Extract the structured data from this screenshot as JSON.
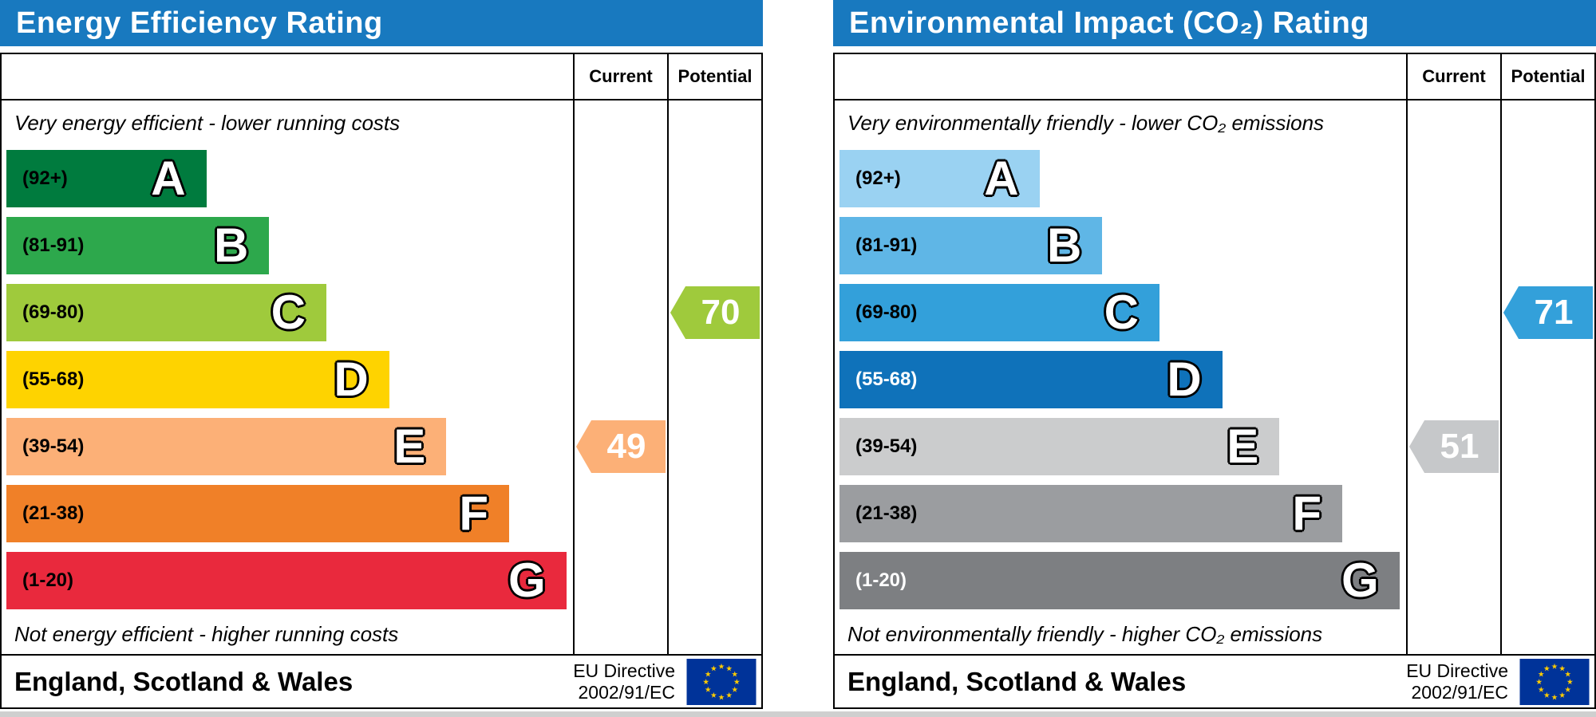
{
  "colors": {
    "header_bg": "#1879bf",
    "header_text": "#ffffff",
    "border": "#000000",
    "eu_flag_bg": "#003399",
    "eu_flag_star": "#ffcc00"
  },
  "panels": [
    {
      "title": "Energy Efficiency Rating",
      "columns": [
        "Current",
        "Potential"
      ],
      "top_note": "Very energy efficient - lower running costs",
      "bottom_note": "Not energy efficient - higher running costs",
      "bands": [
        {
          "letter": "A",
          "range": "(92+)",
          "color": "#007b3e",
          "width_pct": 35
        },
        {
          "letter": "B",
          "range": "(81-91)",
          "color": "#2da84c",
          "width_pct": 46
        },
        {
          "letter": "C",
          "range": "(69-80)",
          "color": "#9fca3c",
          "width_pct": 56
        },
        {
          "letter": "D",
          "range": "(55-68)",
          "color": "#fed300",
          "width_pct": 67
        },
        {
          "letter": "E",
          "range": "(39-54)",
          "color": "#fcb077",
          "width_pct": 77
        },
        {
          "letter": "F",
          "range": "(21-38)",
          "color": "#f08028",
          "width_pct": 88
        },
        {
          "letter": "G",
          "range": "(1-20)",
          "color": "#e9293d",
          "width_pct": 98
        }
      ],
      "current": {
        "value": "49",
        "band": "E",
        "row": 4,
        "color": "#fcb077"
      },
      "potential": {
        "value": "70",
        "band": "C",
        "row": 2,
        "color": "#9fca3c"
      },
      "footer_region": "England, Scotland & Wales",
      "directive": [
        "EU Directive",
        "2002/91/EC"
      ]
    },
    {
      "title": "Environmental Impact (CO₂) Rating",
      "columns": [
        "Current",
        "Potential"
      ],
      "top_note": "Very environmentally friendly - lower CO₂ emissions",
      "bottom_note": "Not environmentally friendly - higher CO₂ emissions",
      "bands": [
        {
          "letter": "A",
          "range": "(92+)",
          "color": "#9ad2f2",
          "width_pct": 35
        },
        {
          "letter": "B",
          "range": "(81-91)",
          "color": "#5fb6e6",
          "width_pct": 46
        },
        {
          "letter": "C",
          "range": "(69-80)",
          "color": "#33a0da",
          "width_pct": 56
        },
        {
          "letter": "D",
          "range": "(55-68)",
          "color": "#0f72ba",
          "width_pct": 67,
          "text": "#ffffff"
        },
        {
          "letter": "E",
          "range": "(39-54)",
          "color": "#cbcccd",
          "width_pct": 77
        },
        {
          "letter": "F",
          "range": "(21-38)",
          "color": "#9b9da0",
          "width_pct": 88
        },
        {
          "letter": "G",
          "range": "(1-20)",
          "color": "#7d7f82",
          "width_pct": 98,
          "text": "#ffffff"
        }
      ],
      "current": {
        "value": "51",
        "band": "E",
        "row": 4,
        "color": "#c6c8ca"
      },
      "potential": {
        "value": "71",
        "band": "C",
        "row": 2,
        "color": "#33a0da"
      },
      "footer_region": "England, Scotland & Wales",
      "directive": [
        "EU Directive",
        "2002/91/EC"
      ]
    }
  ],
  "chart_data": [
    {
      "type": "bar",
      "title": "Energy Efficiency Rating",
      "categories": [
        "A (92+)",
        "B (81-91)",
        "C (69-80)",
        "D (55-68)",
        "E (39-54)",
        "F (21-38)",
        "G (1-20)"
      ],
      "band_bar_widths_pct": [
        35,
        46,
        56,
        67,
        77,
        88,
        98
      ],
      "current": 49,
      "current_band": "E",
      "potential": 70,
      "potential_band": "C",
      "top_annotation": "Very energy efficient - lower running costs",
      "bottom_annotation": "Not energy efficient - higher running costs",
      "region": "England, Scotland & Wales",
      "directive": "EU Directive 2002/91/EC",
      "legend_position": "none",
      "grid": false
    },
    {
      "type": "bar",
      "title": "Environmental Impact (CO₂) Rating",
      "categories": [
        "A (92+)",
        "B (81-91)",
        "C (69-80)",
        "D (55-68)",
        "E (39-54)",
        "F (21-38)",
        "G (1-20)"
      ],
      "band_bar_widths_pct": [
        35,
        46,
        56,
        67,
        77,
        88,
        98
      ],
      "current": 51,
      "current_band": "E",
      "potential": 71,
      "potential_band": "C",
      "top_annotation": "Very environmentally friendly - lower CO₂ emissions",
      "bottom_annotation": "Not environmentally friendly - higher CO₂ emissions",
      "region": "England, Scotland & Wales",
      "directive": "EU Directive 2002/91/EC",
      "legend_position": "none",
      "grid": false
    }
  ]
}
